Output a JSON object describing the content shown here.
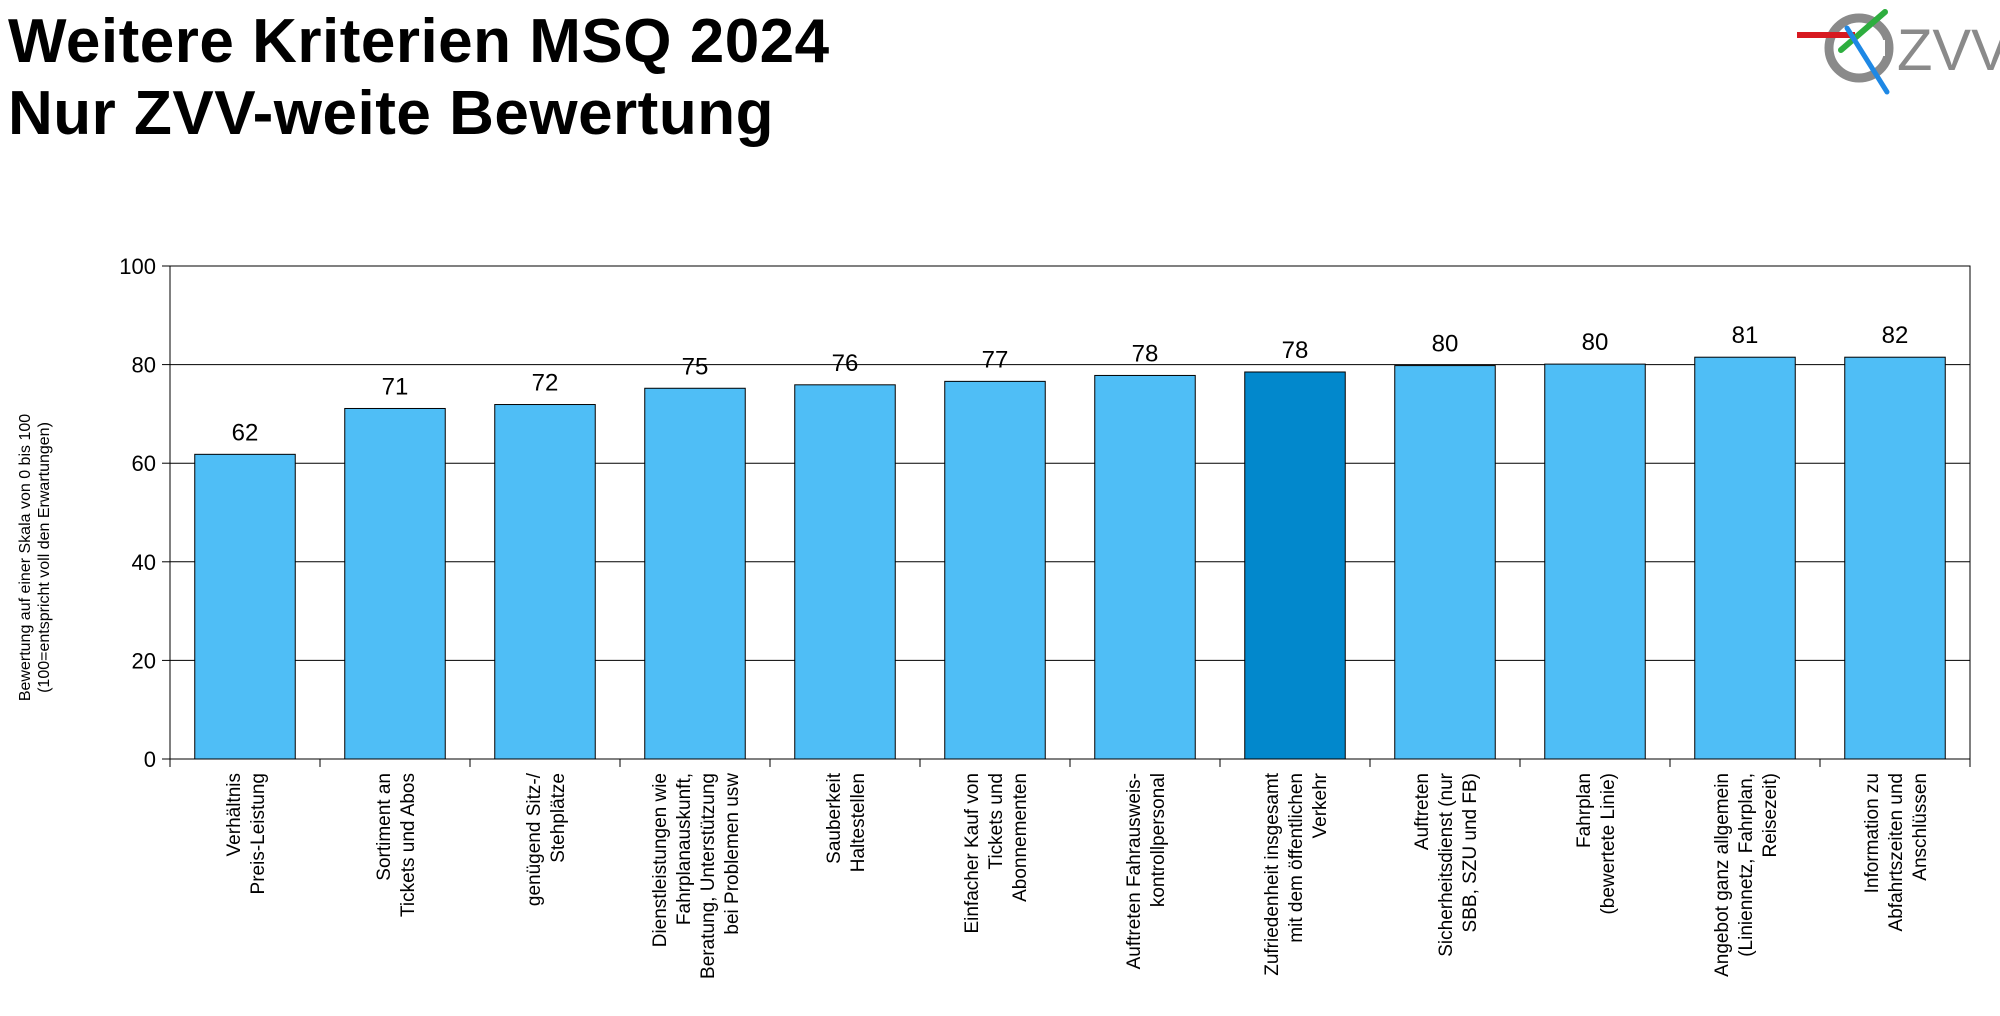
{
  "title": {
    "line1": "Weitere Kriterien MSQ 2024",
    "line2": "Nur ZVV-weite Bewertung"
  },
  "logo": {
    "text": "ZVV",
    "icon": "zvv-logo-icon"
  },
  "colors": {
    "bar": "#4fbef6",
    "highlight": "#0288cc",
    "outline": "#000000",
    "grid": "#000000"
  },
  "chart_data": {
    "type": "bar",
    "ylabel": [
      "Bewertung auf einer Skala von 0 bis 100",
      "(100=entspricht voll den Erwartungen)"
    ],
    "ylim": [
      0,
      100
    ],
    "yticks": [
      0,
      20,
      40,
      60,
      80,
      100
    ],
    "grid": true,
    "highlight_index": 7,
    "categories": [
      [
        "Verhältnis",
        "Preis-Leistung"
      ],
      [
        "Sortiment an",
        "Tickets und Abos"
      ],
      [
        "genügend Sitz-/",
        "Stehplätze"
      ],
      [
        "Dienstleistungen wie",
        "Fahrplanauskunft,",
        "Beratung, Unterstützung",
        "bei Problemen usw"
      ],
      [
        "Sauberkeit",
        "Haltestellen"
      ],
      [
        "Einfacher Kauf von",
        "Tickets und",
        "Abonnementen"
      ],
      [
        "Auftreten Fahrausweis-",
        "kontrollpersonal"
      ],
      [
        "Zufriedenheit insgesamt",
        "mit dem öffentlichen",
        "Verkehr"
      ],
      [
        "Auftreten",
        "Sicherheitsdienst (nur",
        "SBB, SZU und FB)"
      ],
      [
        "Fahrplan",
        "(bewertete Linie)"
      ],
      [
        "Angebot ganz allgemein",
        "(Liniennetz, Fahrplan,",
        "Reisezeit)"
      ],
      [
        "Information zu",
        "Abfahrtszeiten und",
        "Anschlüssen"
      ]
    ],
    "values": [
      61.8,
      71.1,
      71.9,
      75.2,
      75.9,
      76.6,
      77.8,
      78.5,
      79.8,
      80.1,
      81.5,
      81.5
    ],
    "value_labels": [
      "62",
      "71",
      "72",
      "75",
      "76",
      "77",
      "78",
      "78",
      "80",
      "80",
      "81",
      "82"
    ]
  }
}
